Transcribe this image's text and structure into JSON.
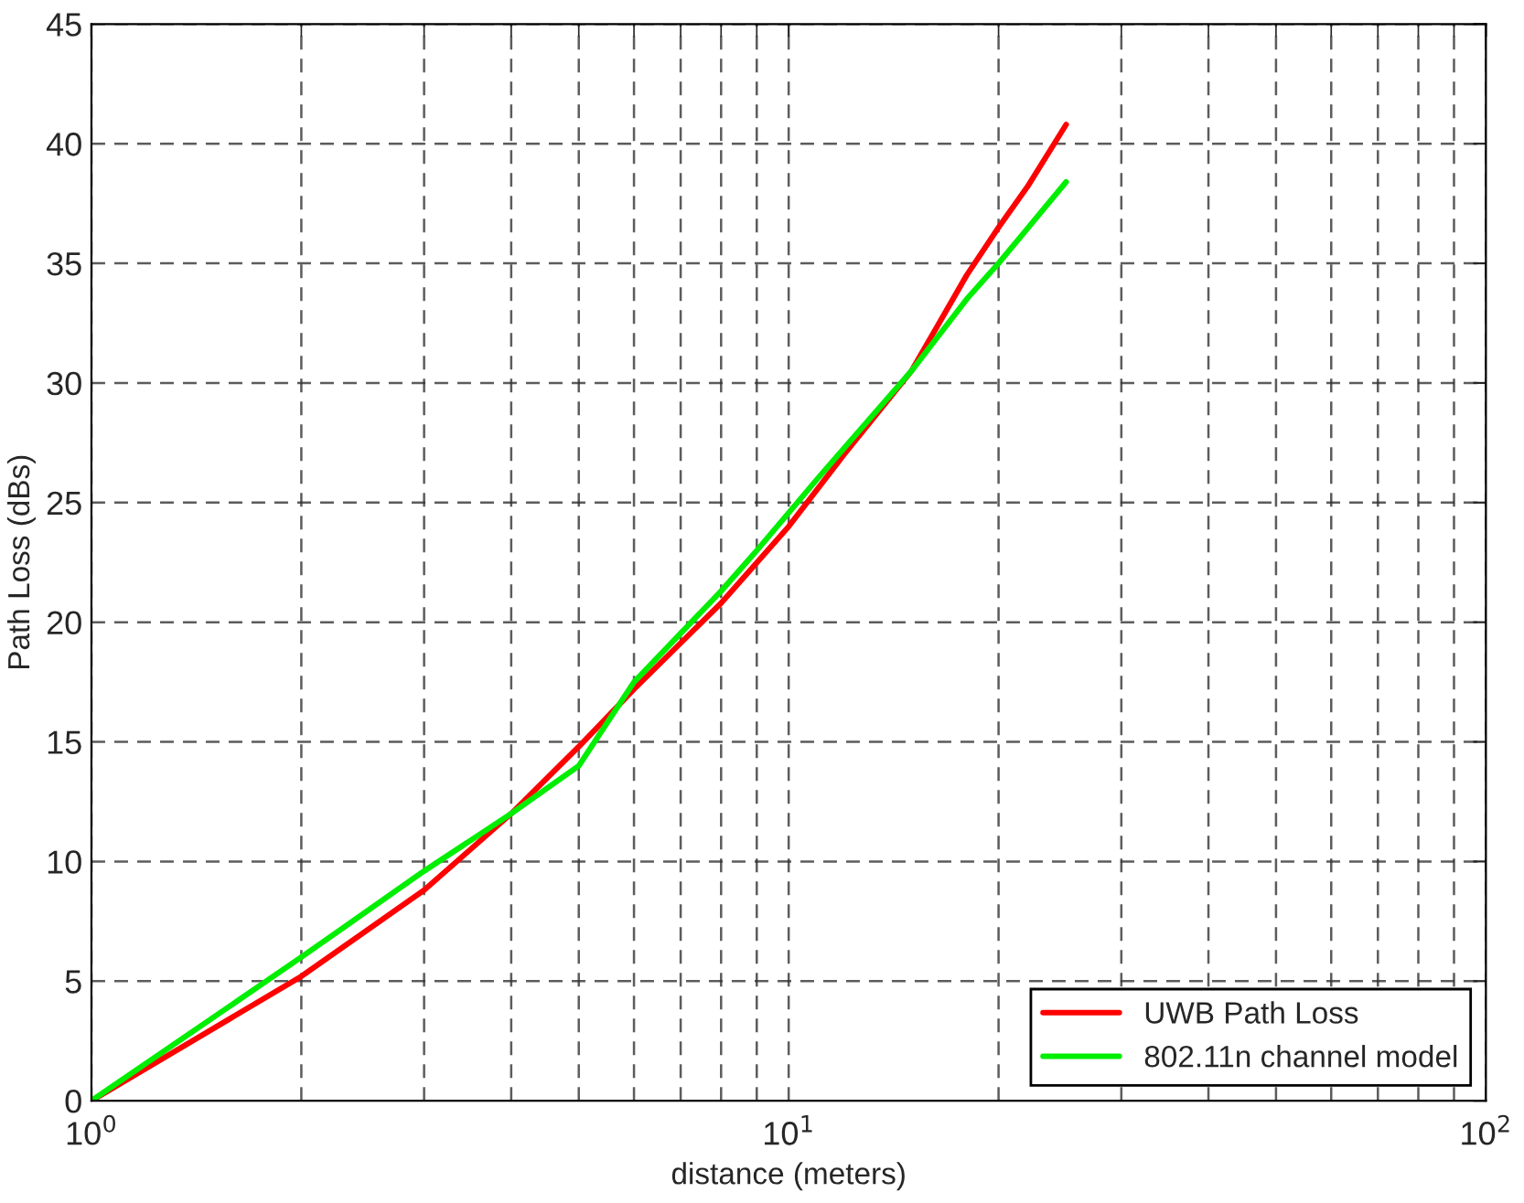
{
  "chart_data": {
    "type": "line",
    "xlabel": "distance (meters)",
    "ylabel": "Path Loss (dBs)",
    "log": "x",
    "xlim": [
      1,
      100
    ],
    "ylim": [
      0,
      45
    ],
    "xticks": [
      {
        "value": 1,
        "label": "10$^{0}$"
      },
      {
        "value": 10,
        "label": "10$^{1}$"
      },
      {
        "value": 100,
        "label": "10$^{2}$"
      }
    ],
    "yticks": [
      0,
      5,
      10,
      15,
      20,
      25,
      30,
      35,
      40,
      45
    ],
    "grid": true,
    "legend": "bottom right",
    "line_style": "solid",
    "marker": "none",
    "series": [
      {
        "name": "UWB Path Loss",
        "color": "#ff0000",
        "x": [
          1,
          2,
          3,
          4,
          5,
          6,
          8,
          10,
          12,
          15,
          18,
          20,
          22,
          25
        ],
        "values": [
          0,
          5.2,
          8.8,
          12,
          14.8,
          17.2,
          20.8,
          24,
          27,
          30.5,
          34.5,
          36.5,
          38.2,
          40.8
        ]
      },
      {
        "name": "802.11n channel model",
        "color": "#00ee00",
        "x": [
          1,
          2,
          3,
          4,
          5,
          6,
          8,
          9,
          11,
          15,
          18,
          20,
          25
        ],
        "values": [
          0,
          6,
          9.6,
          12,
          14,
          17.5,
          21.3,
          23,
          26,
          30.5,
          33.5,
          35,
          38.4
        ]
      }
    ]
  }
}
